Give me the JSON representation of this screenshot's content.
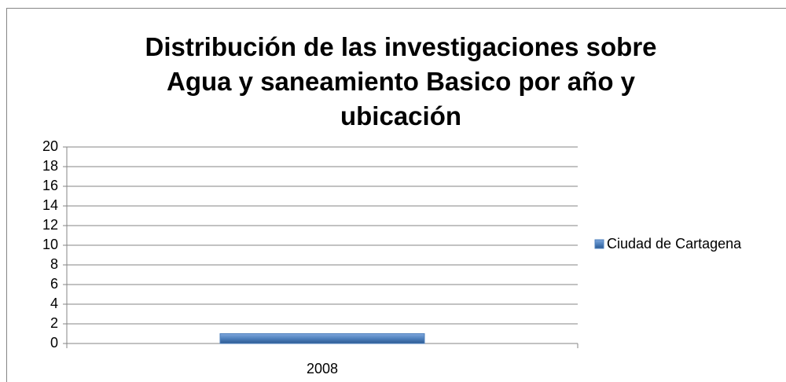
{
  "chart_data": {
    "type": "bar",
    "title": "Distribución de las investigaciones sobre Agua y saneamiento Basico por año y ubicación",
    "categories": [
      "2008"
    ],
    "series": [
      {
        "name": "Ciudad de Cartagena",
        "color": "#4f81bd",
        "values": [
          1
        ]
      }
    ],
    "ylim": [
      0,
      20
    ],
    "yticks": [
      0,
      2,
      4,
      6,
      8,
      10,
      12,
      14,
      16,
      18,
      20
    ],
    "grid": true,
    "legend": "right"
  }
}
